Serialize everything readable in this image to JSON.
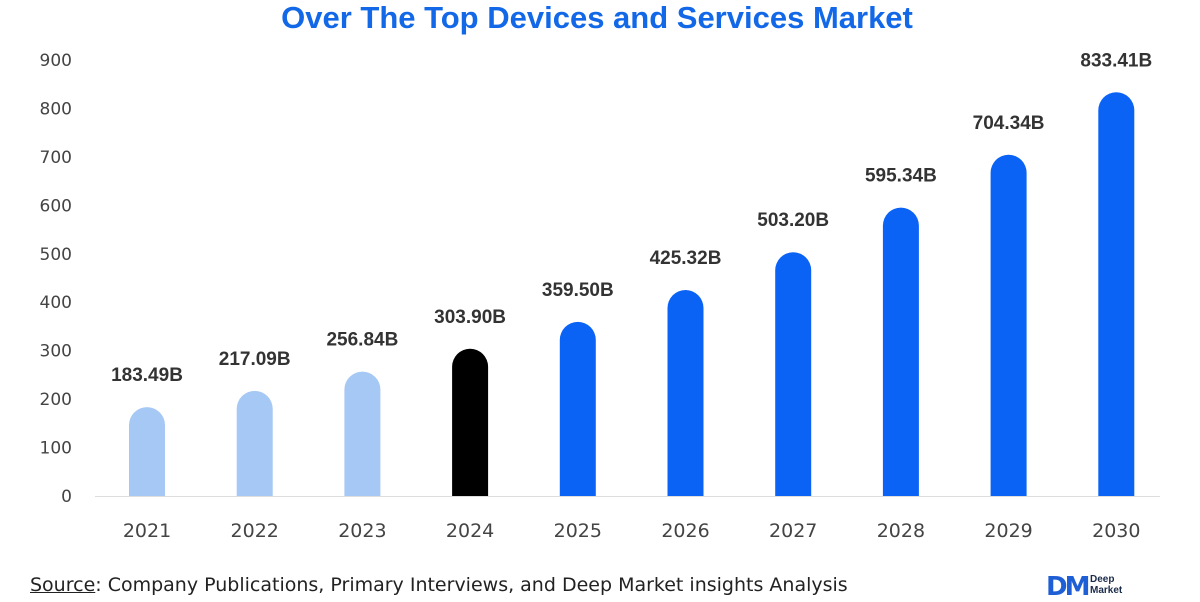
{
  "chart_data": {
    "type": "bar",
    "title": "Over The Top Devices and Services Market",
    "categories": [
      "2021",
      "2022",
      "2023",
      "2024",
      "2025",
      "2026",
      "2027",
      "2028",
      "2029",
      "2030"
    ],
    "values": [
      183.49,
      217.09,
      256.84,
      303.9,
      359.5,
      425.32,
      503.2,
      595.34,
      704.34,
      833.41
    ],
    "data_labels": [
      "183.49B",
      "217.09B",
      "256.84B",
      "303.90B",
      "359.50B",
      "425.32B",
      "503.20B",
      "595.34B",
      "704.34B",
      "833.41B"
    ],
    "bar_colors": [
      "#a6c8f5",
      "#a6c8f5",
      "#a6c8f5",
      "#000000",
      "#0b63f6",
      "#0b63f6",
      "#0b63f6",
      "#0b63f6",
      "#0b63f6",
      "#0b63f6"
    ],
    "ylim": [
      0,
      900
    ],
    "yticks": [
      "0",
      "100",
      "200",
      "300",
      "400",
      "500",
      "600",
      "700",
      "800",
      "900"
    ],
    "xlabel": "",
    "ylabel": "",
    "grid": false,
    "legend": "none",
    "title_color": "#1368e8"
  },
  "source": {
    "label": "Source",
    "text": ": Company Publications, Primary Interviews, and Deep Market insights Analysis"
  },
  "logo": {
    "mark": "DM",
    "line1": "Deep",
    "line2": "Market"
  }
}
